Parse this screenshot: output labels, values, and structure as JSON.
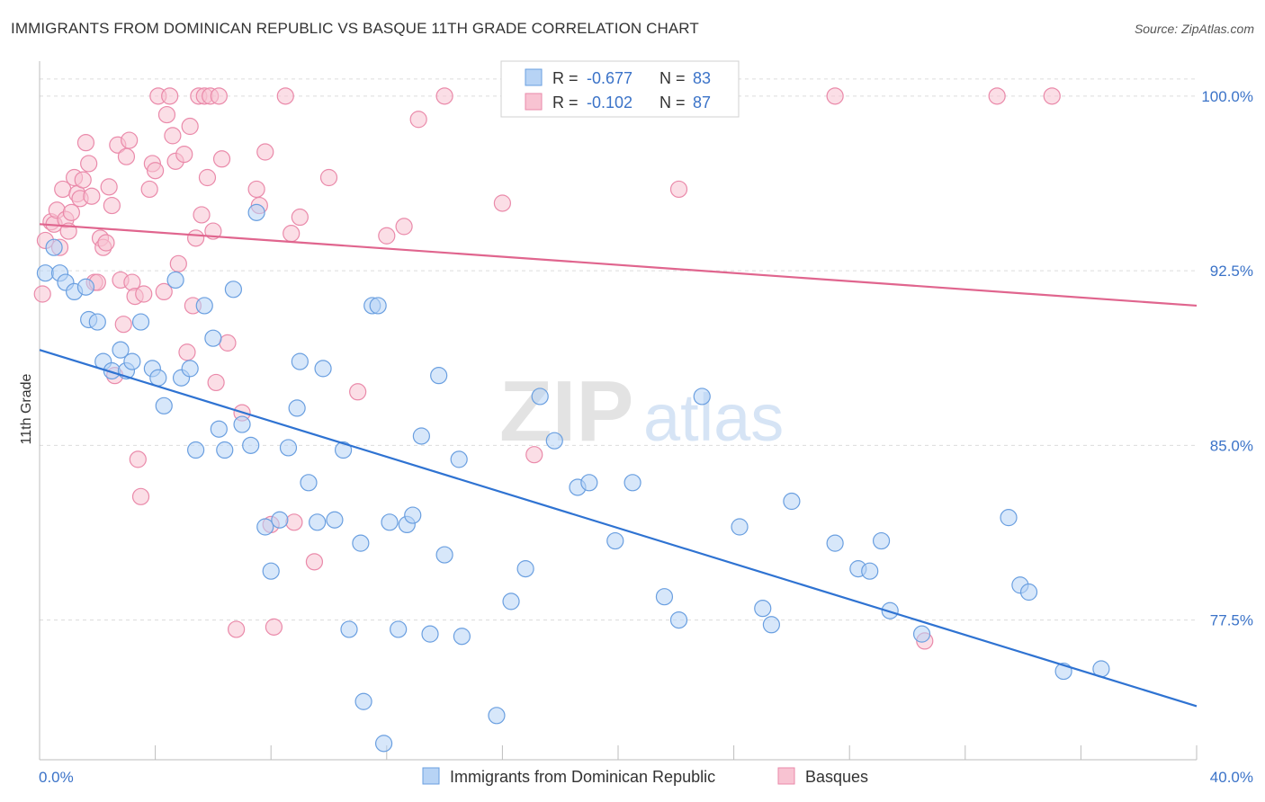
{
  "title": "IMMIGRANTS FROM DOMINICAN REPUBLIC VS BASQUE 11TH GRADE CORRELATION CHART",
  "source": "Source: ZipAtlas.com",
  "watermark": {
    "zip": "ZIP",
    "atlas": "atlas"
  },
  "colors": {
    "blue_fill": "#b7d3f5",
    "blue_stroke": "#6a9fe0",
    "blue_line": "#2f73d2",
    "pink_fill": "#f8c3d2",
    "pink_stroke": "#ea8aaa",
    "pink_line": "#e0658e",
    "axis_value": "#3b73c8",
    "grid": "#dcdcdc"
  },
  "stats": [
    {
      "r_label": "R =",
      "r_value": "-0.677",
      "n_label": "N =",
      "n_value": "83"
    },
    {
      "r_label": "R =",
      "r_value": "-0.102",
      "n_label": "N =",
      "n_value": "87"
    }
  ],
  "chart_data": {
    "type": "scatter",
    "title": "IMMIGRANTS FROM DOMINICAN REPUBLIC VS BASQUE 11TH GRADE CORRELATION CHART",
    "xlabel": "",
    "ylabel": "11th Grade",
    "xlim": [
      0,
      40
    ],
    "ylim": [
      71.5,
      101.5
    ],
    "x_tick_labels": [
      "0.0%",
      "40.0%"
    ],
    "y_ticks": [
      77.5,
      85.0,
      92.5,
      100.0
    ],
    "y_tick_labels": [
      "77.5%",
      "85.0%",
      "92.5%",
      "100.0%"
    ],
    "grid": true,
    "legend_position": "bottom-center",
    "series": [
      {
        "name": "Immigrants from Dominican Republic",
        "color": "#b7d3f5",
        "trend": {
          "x": [
            0,
            40
          ],
          "y": [
            89.1,
            73.8
          ]
        },
        "points": [
          [
            0.2,
            92.4
          ],
          [
            0.5,
            93.5
          ],
          [
            0.7,
            92.4
          ],
          [
            0.9,
            92.0
          ],
          [
            1.2,
            91.6
          ],
          [
            1.6,
            91.8
          ],
          [
            1.7,
            90.4
          ],
          [
            2.0,
            90.3
          ],
          [
            2.2,
            88.6
          ],
          [
            2.5,
            88.2
          ],
          [
            2.8,
            89.1
          ],
          [
            3.0,
            88.2
          ],
          [
            3.2,
            88.6
          ],
          [
            3.5,
            90.3
          ],
          [
            3.9,
            88.3
          ],
          [
            4.1,
            87.9
          ],
          [
            4.3,
            86.7
          ],
          [
            4.7,
            92.1
          ],
          [
            4.9,
            87.9
          ],
          [
            5.2,
            88.3
          ],
          [
            5.4,
            84.8
          ],
          [
            5.7,
            91.0
          ],
          [
            6.0,
            89.6
          ],
          [
            6.2,
            85.7
          ],
          [
            6.4,
            84.8
          ],
          [
            6.7,
            91.7
          ],
          [
            7.0,
            85.9
          ],
          [
            7.3,
            85.0
          ],
          [
            7.5,
            95.0
          ],
          [
            7.8,
            81.5
          ],
          [
            8.0,
            79.6
          ],
          [
            8.3,
            81.8
          ],
          [
            8.6,
            84.9
          ],
          [
            8.9,
            86.6
          ],
          [
            9.0,
            88.6
          ],
          [
            9.3,
            83.4
          ],
          [
            9.6,
            81.7
          ],
          [
            9.8,
            88.3
          ],
          [
            10.2,
            81.8
          ],
          [
            10.5,
            84.8
          ],
          [
            10.7,
            77.1
          ],
          [
            11.1,
            80.8
          ],
          [
            11.2,
            74.0
          ],
          [
            11.5,
            91.0
          ],
          [
            11.7,
            91.0
          ],
          [
            11.9,
            72.2
          ],
          [
            12.1,
            81.7
          ],
          [
            12.4,
            77.1
          ],
          [
            12.7,
            81.6
          ],
          [
            12.9,
            82.0
          ],
          [
            13.2,
            85.4
          ],
          [
            13.5,
            76.9
          ],
          [
            13.8,
            88.0
          ],
          [
            14.0,
            80.3
          ],
          [
            14.5,
            84.4
          ],
          [
            14.6,
            76.8
          ],
          [
            15.8,
            73.4
          ],
          [
            16.3,
            78.3
          ],
          [
            16.8,
            79.7
          ],
          [
            17.3,
            87.1
          ],
          [
            17.8,
            85.2
          ],
          [
            18.6,
            83.2
          ],
          [
            19.0,
            83.4
          ],
          [
            19.9,
            80.9
          ],
          [
            20.5,
            83.4
          ],
          [
            21.6,
            78.5
          ],
          [
            22.1,
            77.5
          ],
          [
            22.9,
            87.1
          ],
          [
            24.2,
            81.5
          ],
          [
            25.0,
            78.0
          ],
          [
            25.3,
            77.3
          ],
          [
            26.0,
            82.6
          ],
          [
            27.5,
            80.8
          ],
          [
            28.3,
            79.7
          ],
          [
            28.7,
            79.6
          ],
          [
            29.1,
            80.9
          ],
          [
            29.4,
            77.9
          ],
          [
            30.5,
            76.9
          ],
          [
            33.5,
            81.9
          ],
          [
            33.9,
            79.0
          ],
          [
            34.2,
            78.7
          ],
          [
            35.4,
            75.3
          ],
          [
            36.7,
            75.4
          ]
        ]
      },
      {
        "name": "Basques",
        "color": "#f8c3d2",
        "trend": {
          "x": [
            0,
            40
          ],
          "y": [
            94.5,
            91.0
          ]
        },
        "points": [
          [
            0.1,
            91.5
          ],
          [
            0.2,
            93.8
          ],
          [
            0.4,
            94.6
          ],
          [
            0.5,
            94.5
          ],
          [
            0.6,
            95.1
          ],
          [
            0.7,
            93.5
          ],
          [
            0.8,
            96.0
          ],
          [
            0.9,
            94.7
          ],
          [
            1.0,
            94.2
          ],
          [
            1.1,
            95.0
          ],
          [
            1.2,
            96.5
          ],
          [
            1.3,
            95.8
          ],
          [
            1.4,
            95.6
          ],
          [
            1.5,
            96.4
          ],
          [
            1.6,
            98.0
          ],
          [
            1.7,
            97.1
          ],
          [
            1.8,
            95.7
          ],
          [
            1.9,
            92.0
          ],
          [
            2.0,
            92.0
          ],
          [
            2.1,
            93.9
          ],
          [
            2.2,
            93.5
          ],
          [
            2.3,
            93.7
          ],
          [
            2.4,
            96.1
          ],
          [
            2.5,
            95.3
          ],
          [
            2.6,
            88.0
          ],
          [
            2.7,
            97.9
          ],
          [
            2.8,
            92.1
          ],
          [
            2.9,
            90.2
          ],
          [
            3.0,
            97.4
          ],
          [
            3.1,
            98.1
          ],
          [
            3.2,
            92.0
          ],
          [
            3.3,
            91.4
          ],
          [
            3.4,
            84.4
          ],
          [
            3.5,
            82.8
          ],
          [
            3.6,
            91.5
          ],
          [
            3.8,
            96.0
          ],
          [
            3.9,
            97.1
          ],
          [
            4.0,
            96.8
          ],
          [
            4.1,
            100.0
          ],
          [
            4.3,
            91.6
          ],
          [
            4.4,
            99.2
          ],
          [
            4.5,
            100.0
          ],
          [
            4.6,
            98.3
          ],
          [
            4.7,
            97.2
          ],
          [
            4.8,
            92.8
          ],
          [
            5.0,
            97.5
          ],
          [
            5.1,
            89.0
          ],
          [
            5.2,
            98.7
          ],
          [
            5.3,
            91.0
          ],
          [
            5.4,
            93.9
          ],
          [
            5.5,
            100.0
          ],
          [
            5.6,
            94.9
          ],
          [
            5.7,
            100.0
          ],
          [
            5.8,
            96.5
          ],
          [
            5.9,
            100.0
          ],
          [
            6.0,
            94.2
          ],
          [
            6.1,
            87.7
          ],
          [
            6.2,
            100.0
          ],
          [
            6.3,
            97.3
          ],
          [
            6.5,
            89.4
          ],
          [
            6.8,
            77.1
          ],
          [
            7.0,
            86.4
          ],
          [
            7.5,
            96.0
          ],
          [
            7.6,
            95.3
          ],
          [
            7.8,
            97.6
          ],
          [
            8.0,
            81.6
          ],
          [
            8.1,
            77.2
          ],
          [
            8.5,
            100.0
          ],
          [
            8.7,
            94.1
          ],
          [
            8.8,
            81.7
          ],
          [
            9.0,
            94.8
          ],
          [
            9.5,
            80.0
          ],
          [
            10.0,
            96.5
          ],
          [
            11.0,
            87.3
          ],
          [
            12.0,
            94.0
          ],
          [
            12.6,
            94.4
          ],
          [
            13.1,
            99.0
          ],
          [
            14.0,
            100.0
          ],
          [
            16.0,
            95.4
          ],
          [
            17.1,
            84.6
          ],
          [
            18.5,
            100.0
          ],
          [
            21.0,
            100.0
          ],
          [
            22.1,
            96.0
          ],
          [
            27.5,
            100.0
          ],
          [
            30.6,
            76.6
          ],
          [
            33.1,
            100.0
          ],
          [
            35.0,
            100.0
          ]
        ]
      }
    ]
  }
}
